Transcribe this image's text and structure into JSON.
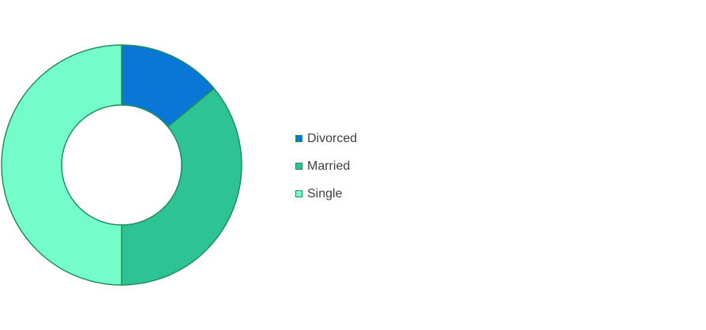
{
  "chart_data": {
    "type": "pie",
    "variant": "donut",
    "categories": [
      "Divorced",
      "Married",
      "Single"
    ],
    "values": [
      14,
      36,
      50
    ],
    "colors": [
      "#0a77d6",
      "#2ec395",
      "#74fccb"
    ],
    "edge_color": "#1f8f5c",
    "legend": "right",
    "legend_items": [
      {
        "label": "Divorced",
        "color": "#0a77d6"
      },
      {
        "label": "Married",
        "color": "#2ec395"
      },
      {
        "label": "Single",
        "color": "#74fccb"
      }
    ]
  }
}
